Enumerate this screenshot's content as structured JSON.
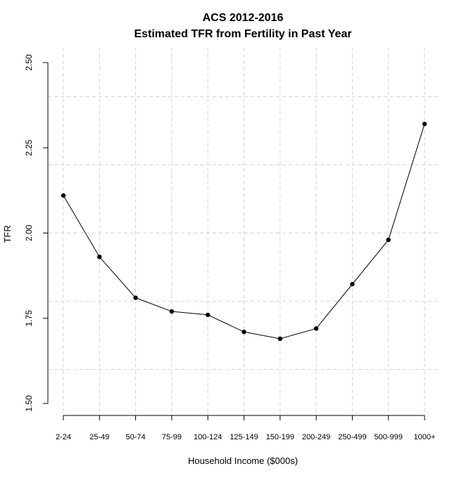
{
  "chart_data": {
    "type": "line",
    "title": "ACS 2012-2016",
    "subtitle": "Estimated TFR from Fertility in Past Year",
    "xlabel": "Household Income ($000s)",
    "ylabel": "TFR",
    "categories": [
      "2-24",
      "25-49",
      "50-74",
      "75-99",
      "100-124",
      "125-149",
      "150-199",
      "200-249",
      "250-499",
      "500-999",
      "1000+"
    ],
    "series": [
      {
        "values": [
          2.11,
          1.93,
          1.81,
          1.77,
          1.76,
          1.71,
          1.69,
          1.72,
          1.85,
          1.98,
          2.32
        ]
      }
    ],
    "ylim": [
      1.5,
      2.5
    ],
    "yticks": [
      1.5,
      1.75,
      2.0,
      2.25,
      2.5
    ],
    "ytick_labels": [
      "1.50",
      "1.75",
      "2.00",
      "2.25",
      "2.50"
    ],
    "ygrid": [
      1.6,
      1.8,
      2.0,
      2.2,
      2.4
    ],
    "grid": true,
    "legend": false
  }
}
